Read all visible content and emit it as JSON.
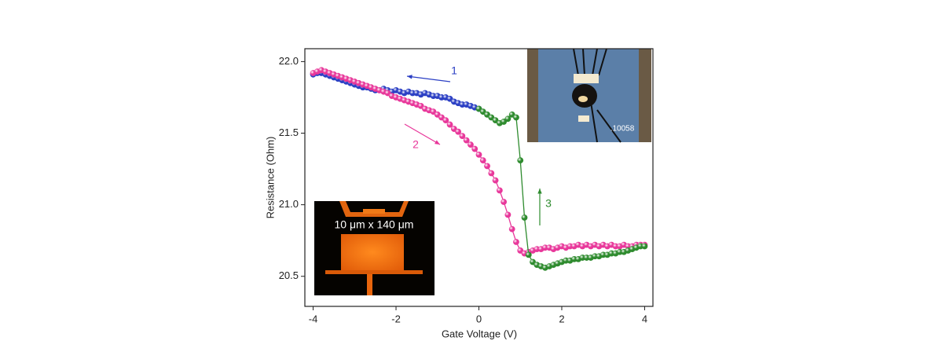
{
  "chart_data": {
    "type": "scatter-line",
    "x_label": "Gate Voltage (V)",
    "y_label": "Resistance (Ohm)",
    "xlim": [
      -4.2,
      4.2
    ],
    "ylim": [
      20.29,
      22.09
    ],
    "xticks": [
      -4,
      -2,
      0,
      2,
      4
    ],
    "yticks": [
      20.5,
      {
        "value": 21,
        "label": "21.0"
      },
      21.5,
      {
        "value": 22,
        "label": "22.0"
      }
    ],
    "series": [
      {
        "name": "1",
        "color": "#2b3fc4",
        "x": [
          -4.0,
          -3.9,
          -3.8,
          -3.7,
          -3.6,
          -3.5,
          -3.4,
          -3.3,
          -3.2,
          -3.1,
          -3.0,
          -2.9,
          -2.8,
          -2.7,
          -2.6,
          -2.5,
          -2.4,
          -2.3,
          -2.2,
          -2.1,
          -2.0,
          -1.9,
          -1.8,
          -1.7,
          -1.6,
          -1.5,
          -1.4,
          -1.3,
          -1.2,
          -1.1,
          -1.0,
          -0.9,
          -0.8,
          -0.7,
          -0.6,
          -0.5,
          -0.4,
          -0.3,
          -0.2,
          -0.1,
          0.0
        ],
        "values": [
          21.91,
          21.92,
          21.92,
          21.91,
          21.9,
          21.89,
          21.88,
          21.87,
          21.86,
          21.85,
          21.84,
          21.83,
          21.82,
          21.82,
          21.81,
          21.8,
          21.8,
          21.81,
          21.8,
          21.79,
          21.8,
          21.79,
          21.78,
          21.79,
          21.78,
          21.78,
          21.77,
          21.78,
          21.77,
          21.76,
          21.76,
          21.75,
          21.75,
          21.74,
          21.72,
          21.71,
          21.7,
          21.7,
          21.69,
          21.68,
          21.67
        ]
      },
      {
        "name": "2",
        "color": "#e8379a",
        "x": [
          -4.0,
          -3.9,
          -3.8,
          -3.7,
          -3.6,
          -3.5,
          -3.4,
          -3.3,
          -3.2,
          -3.1,
          -3.0,
          -2.9,
          -2.8,
          -2.7,
          -2.6,
          -2.5,
          -2.4,
          -2.3,
          -2.2,
          -2.1,
          -2.0,
          -1.9,
          -1.8,
          -1.7,
          -1.6,
          -1.5,
          -1.4,
          -1.3,
          -1.2,
          -1.1,
          -1.0,
          -0.9,
          -0.8,
          -0.7,
          -0.6,
          -0.5,
          -0.4,
          -0.3,
          -0.2,
          -0.1,
          0.0,
          0.1,
          0.2,
          0.3,
          0.4,
          0.5,
          0.6,
          0.7,
          0.8,
          0.9,
          1.0,
          1.1,
          1.2,
          1.3,
          1.4,
          1.5,
          1.6,
          1.7,
          1.8,
          1.9,
          2.0,
          2.1,
          2.2,
          2.3,
          2.4,
          2.5,
          2.6,
          2.7,
          2.8,
          2.9,
          3.0,
          3.1,
          3.2,
          3.3,
          3.4,
          3.5,
          3.6,
          3.7,
          3.8,
          3.9,
          4.0
        ],
        "values": [
          21.92,
          21.93,
          21.94,
          21.93,
          21.92,
          21.91,
          21.9,
          21.89,
          21.88,
          21.87,
          21.86,
          21.85,
          21.84,
          21.83,
          21.82,
          21.81,
          21.8,
          21.79,
          21.78,
          21.76,
          21.75,
          21.74,
          21.73,
          21.72,
          21.71,
          21.7,
          21.69,
          21.67,
          21.66,
          21.65,
          21.63,
          21.61,
          21.59,
          21.56,
          21.53,
          21.51,
          21.48,
          21.45,
          21.42,
          21.39,
          21.35,
          21.31,
          21.27,
          21.22,
          21.17,
          21.1,
          21.02,
          20.93,
          20.83,
          20.74,
          20.68,
          20.66,
          20.67,
          20.68,
          20.69,
          20.69,
          20.7,
          20.7,
          20.69,
          20.7,
          20.71,
          20.7,
          20.71,
          20.71,
          20.72,
          20.71,
          20.72,
          20.71,
          20.72,
          20.71,
          20.72,
          20.71,
          20.72,
          20.71,
          20.71,
          20.72,
          20.71,
          20.71,
          20.72,
          20.72,
          20.72
        ]
      },
      {
        "name": "3",
        "color": "#2e8b2e",
        "x": [
          0.0,
          0.1,
          0.2,
          0.3,
          0.4,
          0.5,
          0.6,
          0.7,
          0.8,
          0.9,
          1.0,
          1.1,
          1.2,
          1.3,
          1.4,
          1.5,
          1.6,
          1.7,
          1.8,
          1.9,
          2.0,
          2.1,
          2.2,
          2.3,
          2.4,
          2.5,
          2.6,
          2.7,
          2.8,
          2.9,
          3.0,
          3.1,
          3.2,
          3.3,
          3.4,
          3.5,
          3.6,
          3.7,
          3.8,
          3.9,
          4.0
        ],
        "values": [
          21.67,
          21.65,
          21.63,
          21.61,
          21.59,
          21.57,
          21.58,
          21.6,
          21.63,
          21.61,
          21.31,
          20.91,
          20.65,
          20.6,
          20.58,
          20.57,
          20.56,
          20.57,
          20.58,
          20.59,
          20.6,
          20.61,
          20.61,
          20.62,
          20.62,
          20.63,
          20.63,
          20.63,
          20.64,
          20.64,
          20.65,
          20.65,
          20.66,
          20.66,
          20.67,
          20.67,
          20.68,
          20.69,
          20.7,
          20.71,
          20.71
        ]
      }
    ],
    "inset_labels": [
      "10 μm x 140 μm",
      ".10058"
    ]
  }
}
